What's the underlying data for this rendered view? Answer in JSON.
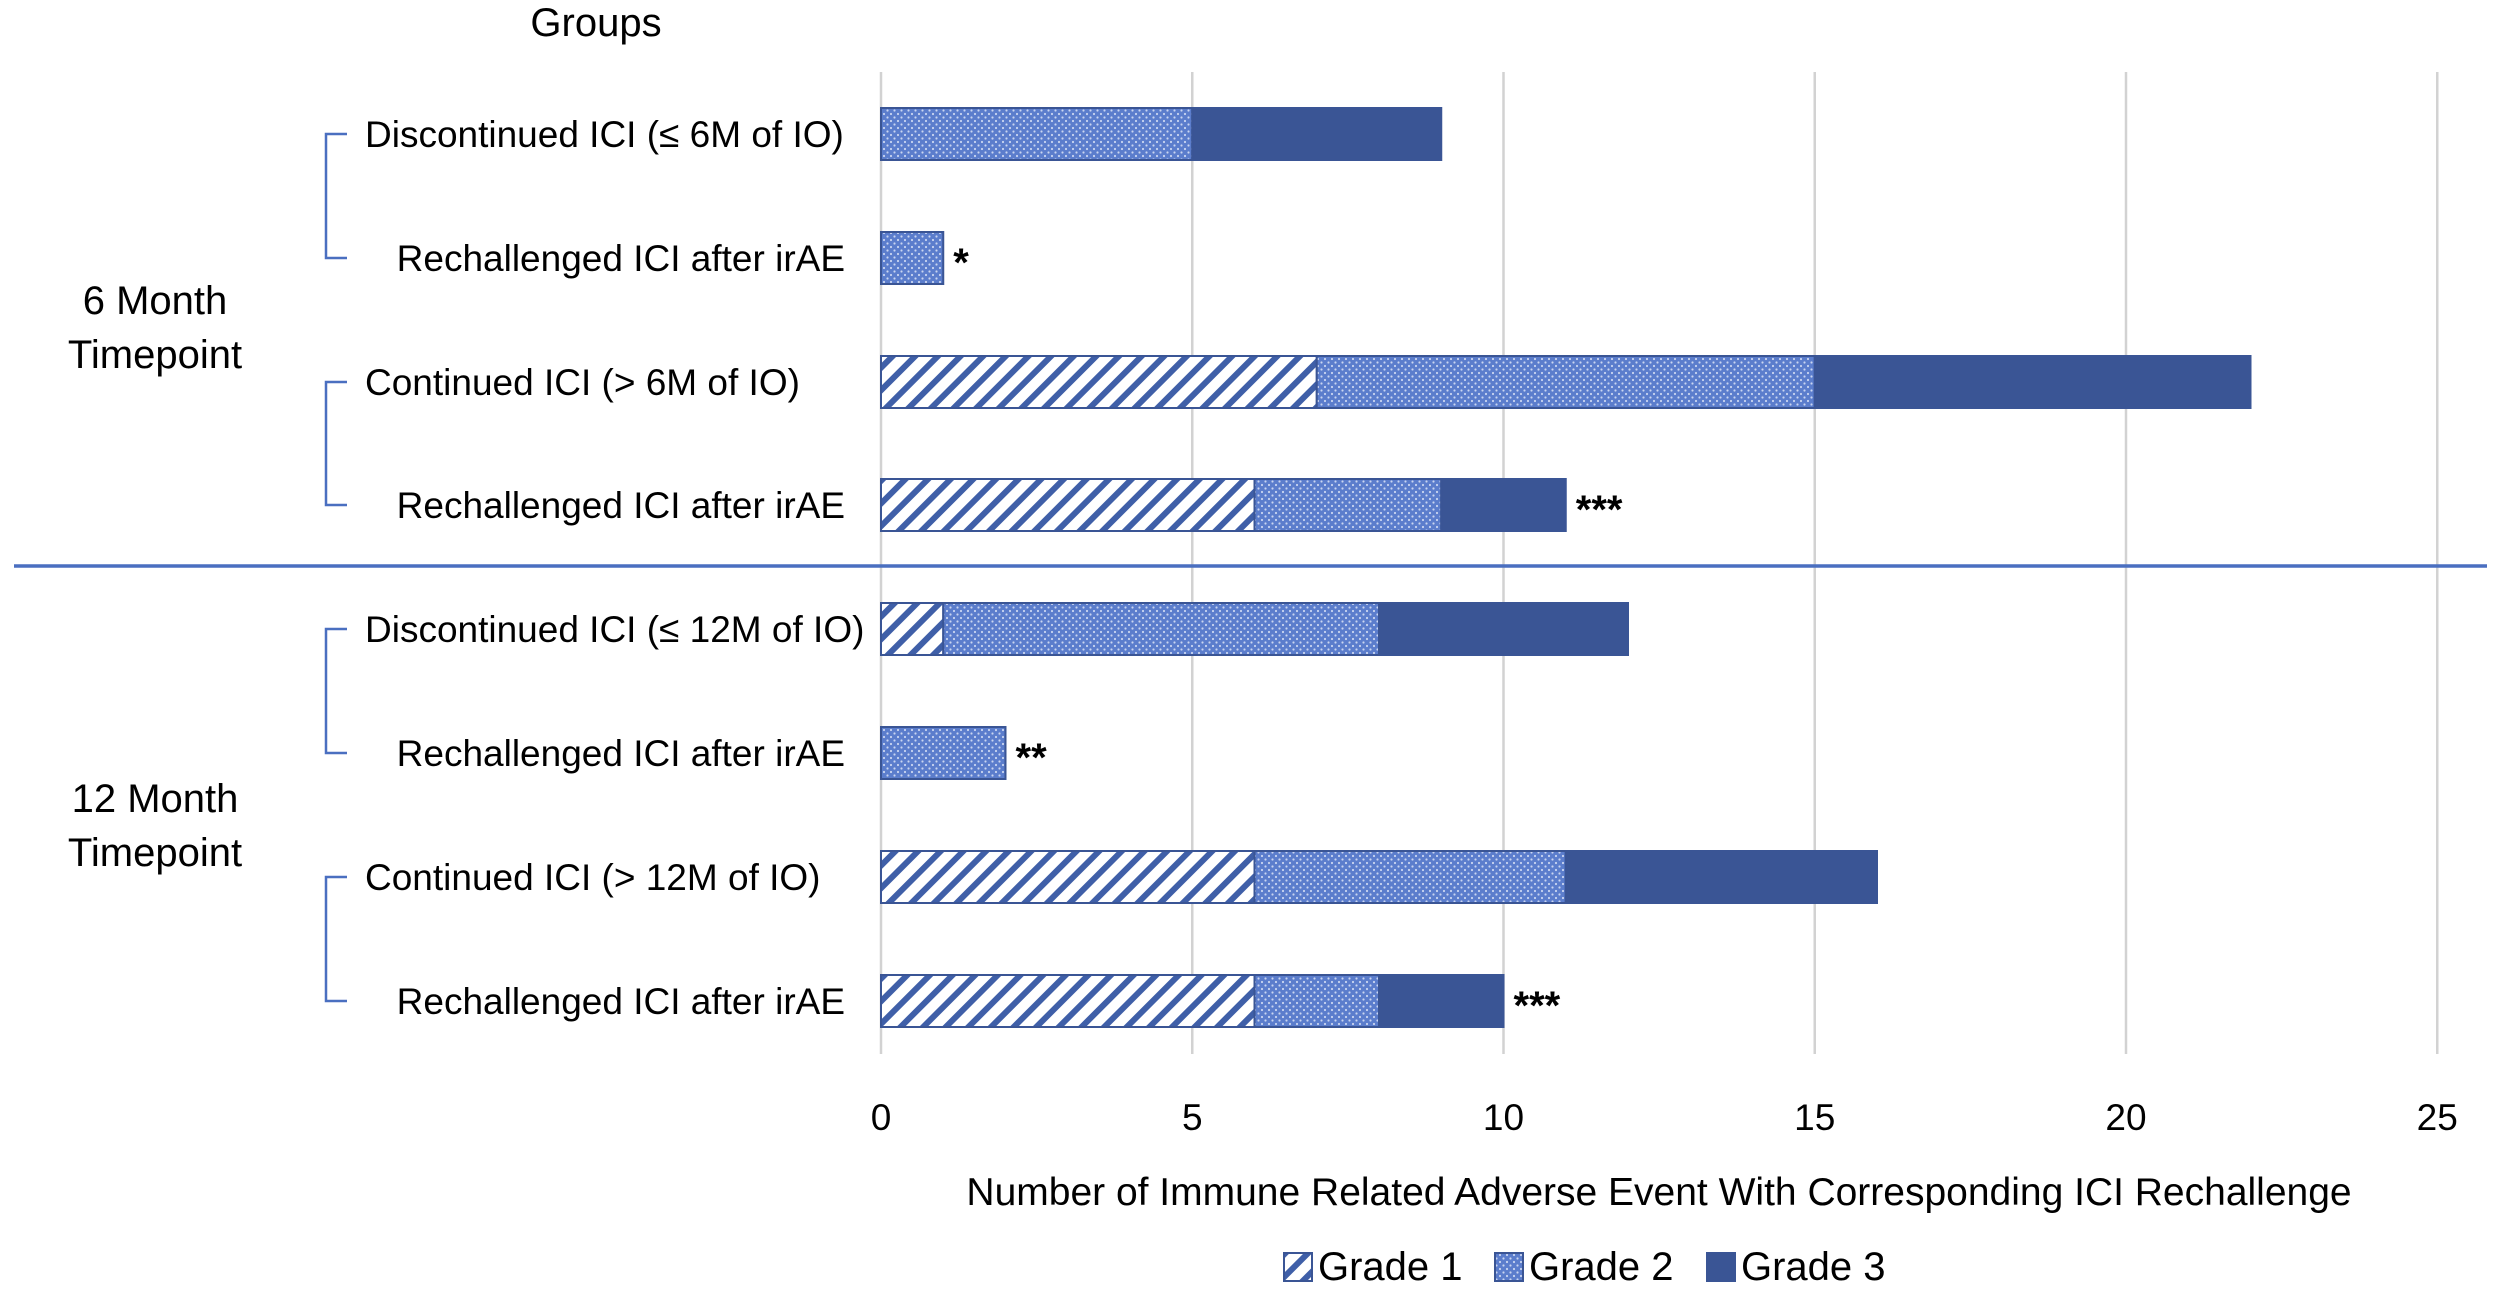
{
  "chart_data": {
    "type": "bar",
    "orientation": "horizontal",
    "stacked": true,
    "header": "Groups",
    "xlabel": "Number of Immune Related Adverse Event With Corresponding ICI Rechallenge",
    "xlim": [
      0,
      25
    ],
    "xticks": [
      0,
      5,
      10,
      15,
      20,
      25
    ],
    "grid": true,
    "legend_position": "bottom",
    "colors": {
      "grade1": "#3f5fa8",
      "grade2": "#5b7dcc",
      "grade3": "#3a5595",
      "divider": "#4a6fc0"
    },
    "timepoints": [
      {
        "line1": "6 Month",
        "line2": "Timepoint"
      },
      {
        "line1": "12 Month",
        "line2": "Timepoint"
      }
    ],
    "categories": [
      "Discontinued ICI (≤ 6M of IO)",
      "Rechallenged ICI after irAE",
      "Continued ICI (> 6M of IO)",
      "Rechallenged ICI after irAE",
      "Discontinued ICI (≤ 12M of IO)",
      "Rechallenged ICI after irAE",
      "Continued ICI (> 12M of IO)",
      "Rechallenged ICI after irAE"
    ],
    "series": [
      {
        "name": "Grade 1",
        "pattern": "hatch",
        "values": [
          0,
          0,
          7,
          6,
          1,
          0,
          6,
          6
        ]
      },
      {
        "name": "Grade 2",
        "pattern": "dots",
        "values": [
          5,
          1,
          8,
          3,
          7,
          2,
          5,
          2
        ]
      },
      {
        "name": "Grade 3",
        "pattern": "solid",
        "values": [
          4,
          0,
          7,
          2,
          4,
          0,
          5,
          2
        ]
      }
    ],
    "annotations": [
      "",
      "*",
      "",
      "***",
      "",
      "**",
      "",
      "***"
    ]
  }
}
